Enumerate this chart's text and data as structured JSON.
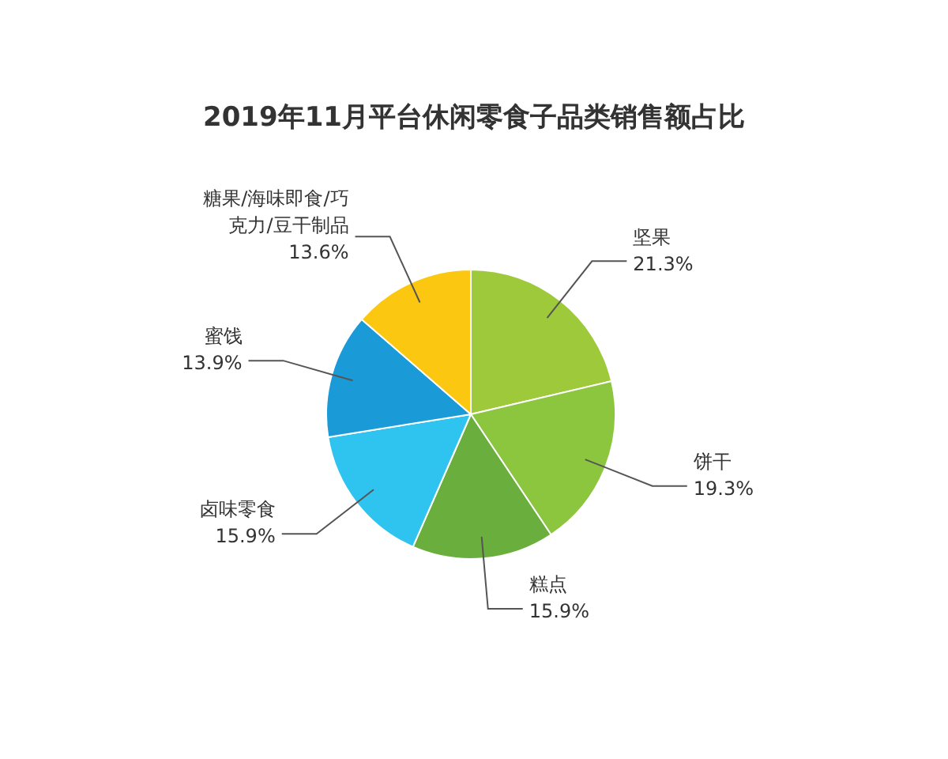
{
  "chart_data": {
    "type": "pie",
    "title": "2019年11月平台休闲零食子品类销售额占比",
    "categories": [
      "坚果",
      "饼干",
      "糕点",
      "卤味零食",
      "蜜饯",
      "糖果/海味即食/巧克力/豆干制品"
    ],
    "values": [
      21.3,
      19.3,
      15.9,
      15.9,
      13.9,
      13.6
    ],
    "value_labels": [
      "21.3%",
      "19.3%",
      "15.9%",
      "15.9%",
      "13.9%",
      "13.6%"
    ],
    "colors": [
      "#9dc93a",
      "#8cc63f",
      "#6aaf3d",
      "#2ec4ef",
      "#1a9ad6",
      "#fcc711"
    ],
    "legend": false
  }
}
